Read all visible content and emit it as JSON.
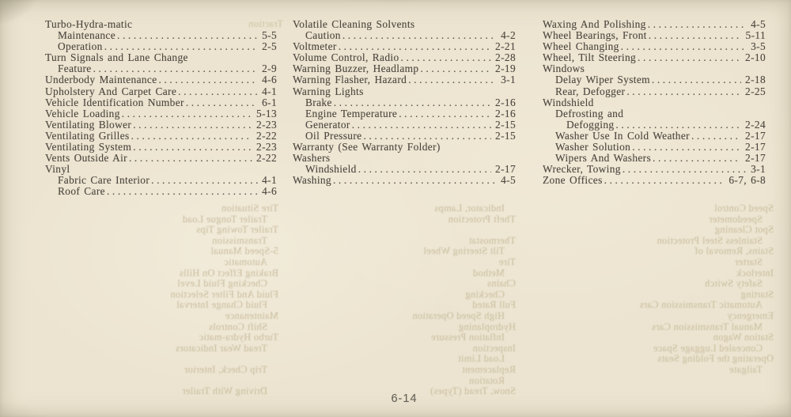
{
  "page": {
    "number": "6-14",
    "paper_color": "#ece4d0",
    "ink_color": "#4e4841"
  },
  "index": {
    "columns": [
      {
        "entries": [
          {
            "label": "Turbo-Hydra-matic",
            "indent": 0,
            "page": ""
          },
          {
            "label": "Maintenance",
            "indent": 1,
            "page": "5-5"
          },
          {
            "label": "Operation",
            "indent": 1,
            "page": "2-5"
          },
          {
            "label": "Turn Signals and Lane Change",
            "indent": 0,
            "page": ""
          },
          {
            "label": "Feature",
            "indent": 1,
            "page": "2-9"
          },
          {
            "label": "Underbody Maintenance",
            "indent": 0,
            "page": "4-6"
          },
          {
            "label": "Upholstery And Carpet Care",
            "indent": 0,
            "page": "4-1"
          },
          {
            "label": "Vehicle Identification Number",
            "indent": 0,
            "page": "6-1"
          },
          {
            "label": "Vehicle Loading",
            "indent": 0,
            "page": "5-13"
          },
          {
            "label": "Ventilating Blower",
            "indent": 0,
            "page": "2-23"
          },
          {
            "label": "Ventilating Grilles",
            "indent": 0,
            "page": "2-22"
          },
          {
            "label": "Ventilating System",
            "indent": 0,
            "page": "2-23"
          },
          {
            "label": "Vents Outside Air",
            "indent": 0,
            "page": "2-22"
          },
          {
            "label": "Vinyl",
            "indent": 0,
            "page": ""
          },
          {
            "label": "Fabric Care Interior",
            "indent": 1,
            "page": "4-1"
          },
          {
            "label": "Roof Care",
            "indent": 1,
            "page": "4-6"
          }
        ]
      },
      {
        "entries": [
          {
            "label": "Volatile Cleaning Solvents",
            "indent": 0,
            "page": ""
          },
          {
            "label": "Caution",
            "indent": 1,
            "page": "4-2"
          },
          {
            "label": "Voltmeter",
            "indent": 0,
            "page": "2-21"
          },
          {
            "label": "Volume Control, Radio",
            "indent": 0,
            "page": "2-28"
          },
          {
            "label": "Warning Buzzer, Headlamp",
            "indent": 0,
            "page": "2-19"
          },
          {
            "label": "Warning Flasher, Hazard",
            "indent": 0,
            "page": "3-1"
          },
          {
            "label": "Warning Lights",
            "indent": 0,
            "page": ""
          },
          {
            "label": "Brake",
            "indent": 1,
            "page": "2-16"
          },
          {
            "label": "Engine Temperature",
            "indent": 1,
            "page": "2-16"
          },
          {
            "label": "Generator",
            "indent": 1,
            "page": "2-15"
          },
          {
            "label": "Oil Pressure",
            "indent": 1,
            "page": "2-15"
          },
          {
            "label": "Warranty (See Warranty Folder)",
            "indent": 0,
            "page": ""
          },
          {
            "label": "Washers",
            "indent": 0,
            "page": ""
          },
          {
            "label": "Windshield",
            "indent": 1,
            "page": "2-17"
          },
          {
            "label": "Washing",
            "indent": 0,
            "page": "4-5"
          }
        ]
      },
      {
        "entries": [
          {
            "label": "Waxing And Polishing",
            "indent": 0,
            "page": "4-5"
          },
          {
            "label": "Wheel Bearings, Front",
            "indent": 0,
            "page": "5-11"
          },
          {
            "label": "Wheel Changing",
            "indent": 0,
            "page": "3-5"
          },
          {
            "label": "Wheel, Tilt Steering",
            "indent": 0,
            "page": "2-10"
          },
          {
            "label": "Windows",
            "indent": 0,
            "page": ""
          },
          {
            "label": "Delay Wiper System",
            "indent": 1,
            "page": "2-18"
          },
          {
            "label": "Rear, Defogger",
            "indent": 1,
            "page": "2-25"
          },
          {
            "label": "Windshield",
            "indent": 0,
            "page": ""
          },
          {
            "label": "Defrosting and",
            "indent": 1,
            "page": ""
          },
          {
            "label": "Defogging",
            "indent": 2,
            "page": "2-24"
          },
          {
            "label": "Washer Use In Cold Weather",
            "indent": 1,
            "page": "2-17"
          },
          {
            "label": "Washer Solution",
            "indent": 1,
            "page": "2-17"
          },
          {
            "label": "Wipers And Washers",
            "indent": 1,
            "page": "2-17"
          },
          {
            "label": "Wrecker, Towing",
            "indent": 0,
            "page": "3-1"
          },
          {
            "label": "Zone Offices",
            "indent": 0,
            "page": "6-7, 6-8"
          }
        ]
      }
    ]
  },
  "ghost_showthrough": {
    "blocks": [
      {
        "lines": [
          "Traction"
        ]
      },
      {
        "lines": [
          "Tire Situation",
          "Trailer Tongue Load",
          "Trailer Towing Tips",
          "Transmission",
          "5-Speed Manual",
          "Automatic",
          "Braking Effect On Hills",
          "Checking Fluid Level",
          "Fluid And Filter Selection",
          "Fluid Change Interval",
          "Maintenance",
          "Shift Controls",
          "Turbo Hydra-matic",
          "Tread Wear Indicators",
          "",
          "Trip Check, Interior",
          "",
          "Driving With Trailer"
        ]
      },
      {
        "lines": [
          "Indicator, Lamps",
          "Theft Protection",
          "",
          "Thermostat",
          "Tilt Steering Wheel",
          "Tire",
          "Method",
          "Chains",
          "Checking",
          "Full Rated",
          "High Speed Operation",
          "Hydroplaning",
          "Inflation Pressure",
          "Inspection",
          "Load Limit",
          "Replacement",
          "Rotation",
          "Snow, Tread (Types)"
        ]
      },
      {
        "lines": [
          "Speed Control",
          "Speedometer",
          "Spot Cleaning",
          "Stainless Steel Protection",
          "Stains, Removal of",
          "Starter",
          "Interlock",
          "Safety Switch",
          "Starting",
          "Automatic Transmission Cars",
          "Emergency",
          "Manual Transmission Cars",
          "Station Wagon",
          "Concealed Luggage Space",
          "Operating the Folding Seats",
          "Tailgate"
        ]
      }
    ]
  }
}
